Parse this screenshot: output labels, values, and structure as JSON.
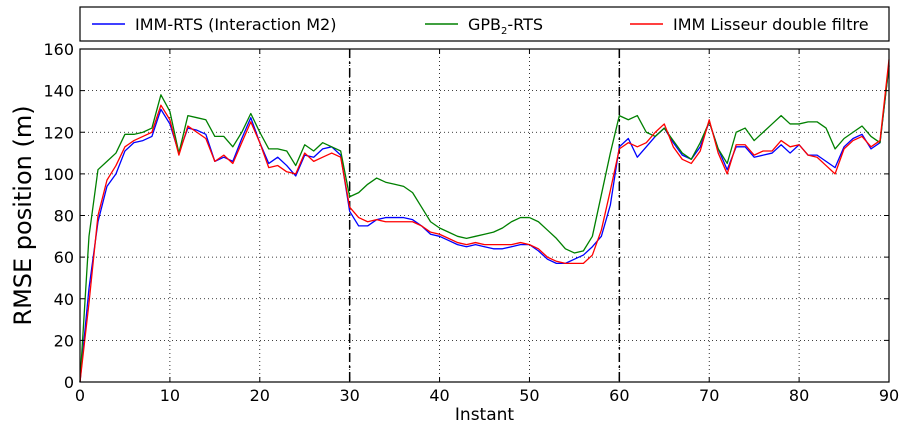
{
  "chart_data": {
    "type": "line",
    "title": "",
    "xlabel": "Instant",
    "ylabel": "RMSE position (m)",
    "xlim": [
      0,
      90
    ],
    "ylim": [
      0,
      160
    ],
    "x_ticks": [
      0,
      10,
      20,
      30,
      40,
      50,
      60,
      70,
      80,
      90
    ],
    "y_ticks": [
      0,
      20,
      40,
      60,
      80,
      100,
      120,
      140,
      160
    ],
    "grid": true,
    "legend_position": "top, above plot",
    "vertical_markers": [
      30,
      60
    ],
    "x": [
      0,
      1,
      2,
      3,
      4,
      5,
      6,
      7,
      8,
      9,
      10,
      11,
      12,
      13,
      14,
      15,
      16,
      17,
      18,
      19,
      20,
      21,
      22,
      23,
      24,
      25,
      26,
      27,
      28,
      29,
      30,
      31,
      32,
      33,
      34,
      35,
      36,
      37,
      38,
      39,
      40,
      41,
      42,
      43,
      44,
      45,
      46,
      47,
      48,
      49,
      50,
      51,
      52,
      53,
      54,
      55,
      56,
      57,
      58,
      59,
      60,
      61,
      62,
      63,
      64,
      65,
      66,
      67,
      68,
      69,
      70,
      71,
      72,
      73,
      74,
      75,
      76,
      77,
      78,
      79,
      80,
      81,
      82,
      83,
      84,
      85,
      86,
      87,
      88,
      89,
      90
    ],
    "series": [
      {
        "name": "IMM-RTS (Interaction M2)",
        "legend_label": "IMM-RTS (Interaction M2)",
        "color": "#0000ff",
        "values": [
          0,
          45,
          77,
          94,
          100,
          111,
          115,
          116,
          118,
          131,
          124,
          110,
          122,
          121,
          119,
          106,
          108,
          106,
          117,
          127,
          115,
          105,
          108,
          104,
          99,
          109,
          108,
          112,
          113,
          109,
          82,
          75,
          75,
          78,
          79,
          79,
          79,
          78,
          75,
          71,
          70,
          68,
          66,
          65,
          66,
          65,
          64,
          64,
          65,
          66,
          66,
          63,
          59,
          57,
          57,
          59,
          61,
          65,
          70,
          85,
          113,
          117,
          108,
          113,
          118,
          122,
          115,
          109,
          107,
          113,
          125,
          112,
          102,
          113,
          113,
          108,
          109,
          110,
          114,
          110,
          114,
          109,
          109,
          106,
          103,
          113,
          117,
          119,
          112,
          115,
          152
        ]
      },
      {
        "name": "GPB₂-RTS",
        "legend_main": "GPB",
        "legend_sub": "2",
        "legend_tail": "-RTS",
        "color": "#008000",
        "values": [
          0,
          70,
          102,
          106,
          110,
          119,
          119,
          120,
          122,
          138,
          130,
          110,
          128,
          127,
          126,
          118,
          118,
          113,
          120,
          129,
          120,
          112,
          112,
          111,
          104,
          114,
          111,
          115,
          113,
          111,
          89,
          91,
          95,
          98,
          96,
          95,
          94,
          91,
          84,
          77,
          74,
          72,
          70,
          69,
          70,
          71,
          72,
          74,
          77,
          79,
          79,
          77,
          73,
          69,
          64,
          62,
          63,
          70,
          90,
          110,
          128,
          126,
          128,
          120,
          118,
          122,
          116,
          110,
          107,
          115,
          125,
          112,
          105,
          120,
          122,
          116,
          120,
          124,
          128,
          124,
          124,
          125,
          125,
          122,
          112,
          117,
          120,
          123,
          118,
          115,
          152
        ]
      },
      {
        "name": "IMM Lisseur double filtre",
        "legend_label": "IMM Lisseur double filtre",
        "color": "#ff0000",
        "values": [
          0,
          38,
          80,
          97,
          104,
          113,
          116,
          118,
          120,
          133,
          126,
          109,
          123,
          120,
          117,
          106,
          109,
          105,
          115,
          125,
          115,
          103,
          104,
          101,
          100,
          110,
          106,
          108,
          110,
          108,
          84,
          79,
          77,
          78,
          77,
          77,
          77,
          77,
          75,
          72,
          71,
          69,
          67,
          66,
          67,
          66,
          66,
          66,
          66,
          67,
          66,
          64,
          60,
          58,
          57,
          57,
          57,
          61,
          73,
          92,
          112,
          115,
          113,
          115,
          120,
          124,
          113,
          107,
          105,
          111,
          126,
          110,
          100,
          114,
          114,
          109,
          111,
          111,
          116,
          113,
          114,
          109,
          108,
          104,
          100,
          112,
          116,
          118,
          113,
          116,
          155
        ]
      }
    ]
  }
}
